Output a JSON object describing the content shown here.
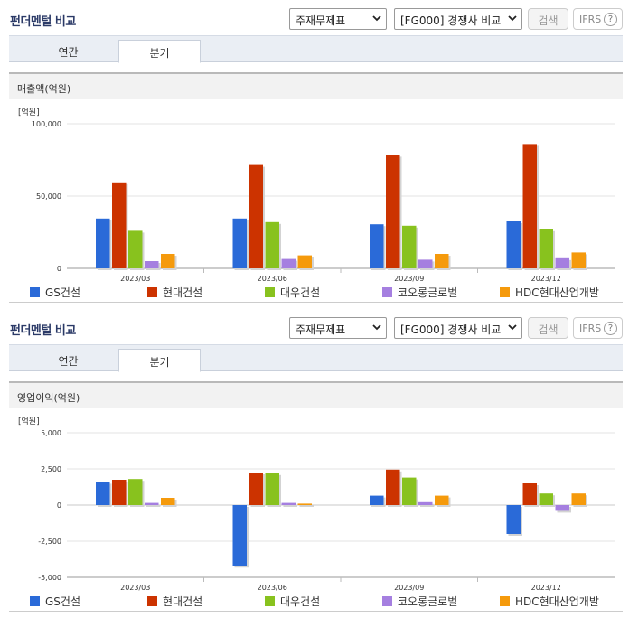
{
  "panels": [
    {
      "title": "펀더멘털 비교",
      "statement_select": "주재무제표",
      "peer_select": "[FG000] 경쟁사 비교",
      "search_label": "검색",
      "ifrs_label": "IFRS",
      "help_label": "?",
      "tabs": [
        "연간",
        "분기"
      ],
      "active_tab": 1,
      "subtitle": "매출액(억원)",
      "chart_data": {
        "type": "bar",
        "unit_label": "[억원]",
        "categories": [
          "2023/03",
          "2023/06",
          "2023/09",
          "2023/12"
        ],
        "ylim": [
          0,
          100000
        ],
        "yticks": [
          0,
          50000,
          100000
        ],
        "ytick_labels": [
          "0",
          "50,000",
          "100,000"
        ],
        "grid": true,
        "legend_position": "bottom",
        "series": [
          {
            "name": "GS건설",
            "color": "#2a6ad8",
            "values": [
              34500,
              34500,
              30500,
              32500
            ]
          },
          {
            "name": "현대건설",
            "color": "#cc3300",
            "values": [
              59500,
              71500,
              78500,
              86000
            ]
          },
          {
            "name": "대우건설",
            "color": "#88c21e",
            "values": [
              26000,
              32000,
              29500,
              27000
            ]
          },
          {
            "name": "코오롱글로벌",
            "color": "#a57fe0",
            "values": [
              5000,
              6500,
              6000,
              7000
            ]
          },
          {
            "name": "HDC현대산업개발",
            "color": "#f59a0c",
            "values": [
              10000,
              9000,
              10000,
              11000
            ]
          }
        ]
      }
    },
    {
      "title": "펀더멘털 비교",
      "statement_select": "주재무제표",
      "peer_select": "[FG000] 경쟁사 비교",
      "search_label": "검색",
      "ifrs_label": "IFRS",
      "help_label": "?",
      "tabs": [
        "연간",
        "분기"
      ],
      "active_tab": 1,
      "subtitle": "영업이익(억원)",
      "chart_data": {
        "type": "bar",
        "unit_label": "[억원]",
        "categories": [
          "2023/03",
          "2023/06",
          "2023/09",
          "2023/12"
        ],
        "ylim": [
          -5000,
          5000
        ],
        "yticks": [
          -5000,
          -2500,
          0,
          2500,
          5000
        ],
        "ytick_labels": [
          "-5,000",
          "-2,500",
          "0",
          "2,500",
          "5,000"
        ],
        "grid": true,
        "legend_position": "bottom",
        "series": [
          {
            "name": "GS건설",
            "color": "#2a6ad8",
            "values": [
              1600,
              -4200,
              650,
              -2000
            ]
          },
          {
            "name": "현대건설",
            "color": "#cc3300",
            "values": [
              1750,
              2250,
              2450,
              1500
            ]
          },
          {
            "name": "대우건설",
            "color": "#88c21e",
            "values": [
              1800,
              2200,
              1900,
              800
            ]
          },
          {
            "name": "코오롱글로벌",
            "color": "#a57fe0",
            "values": [
              150,
              150,
              200,
              -400
            ]
          },
          {
            "name": "HDC현대산업개발",
            "color": "#f59a0c",
            "values": [
              500,
              100,
              650,
              800
            ]
          }
        ]
      }
    }
  ]
}
